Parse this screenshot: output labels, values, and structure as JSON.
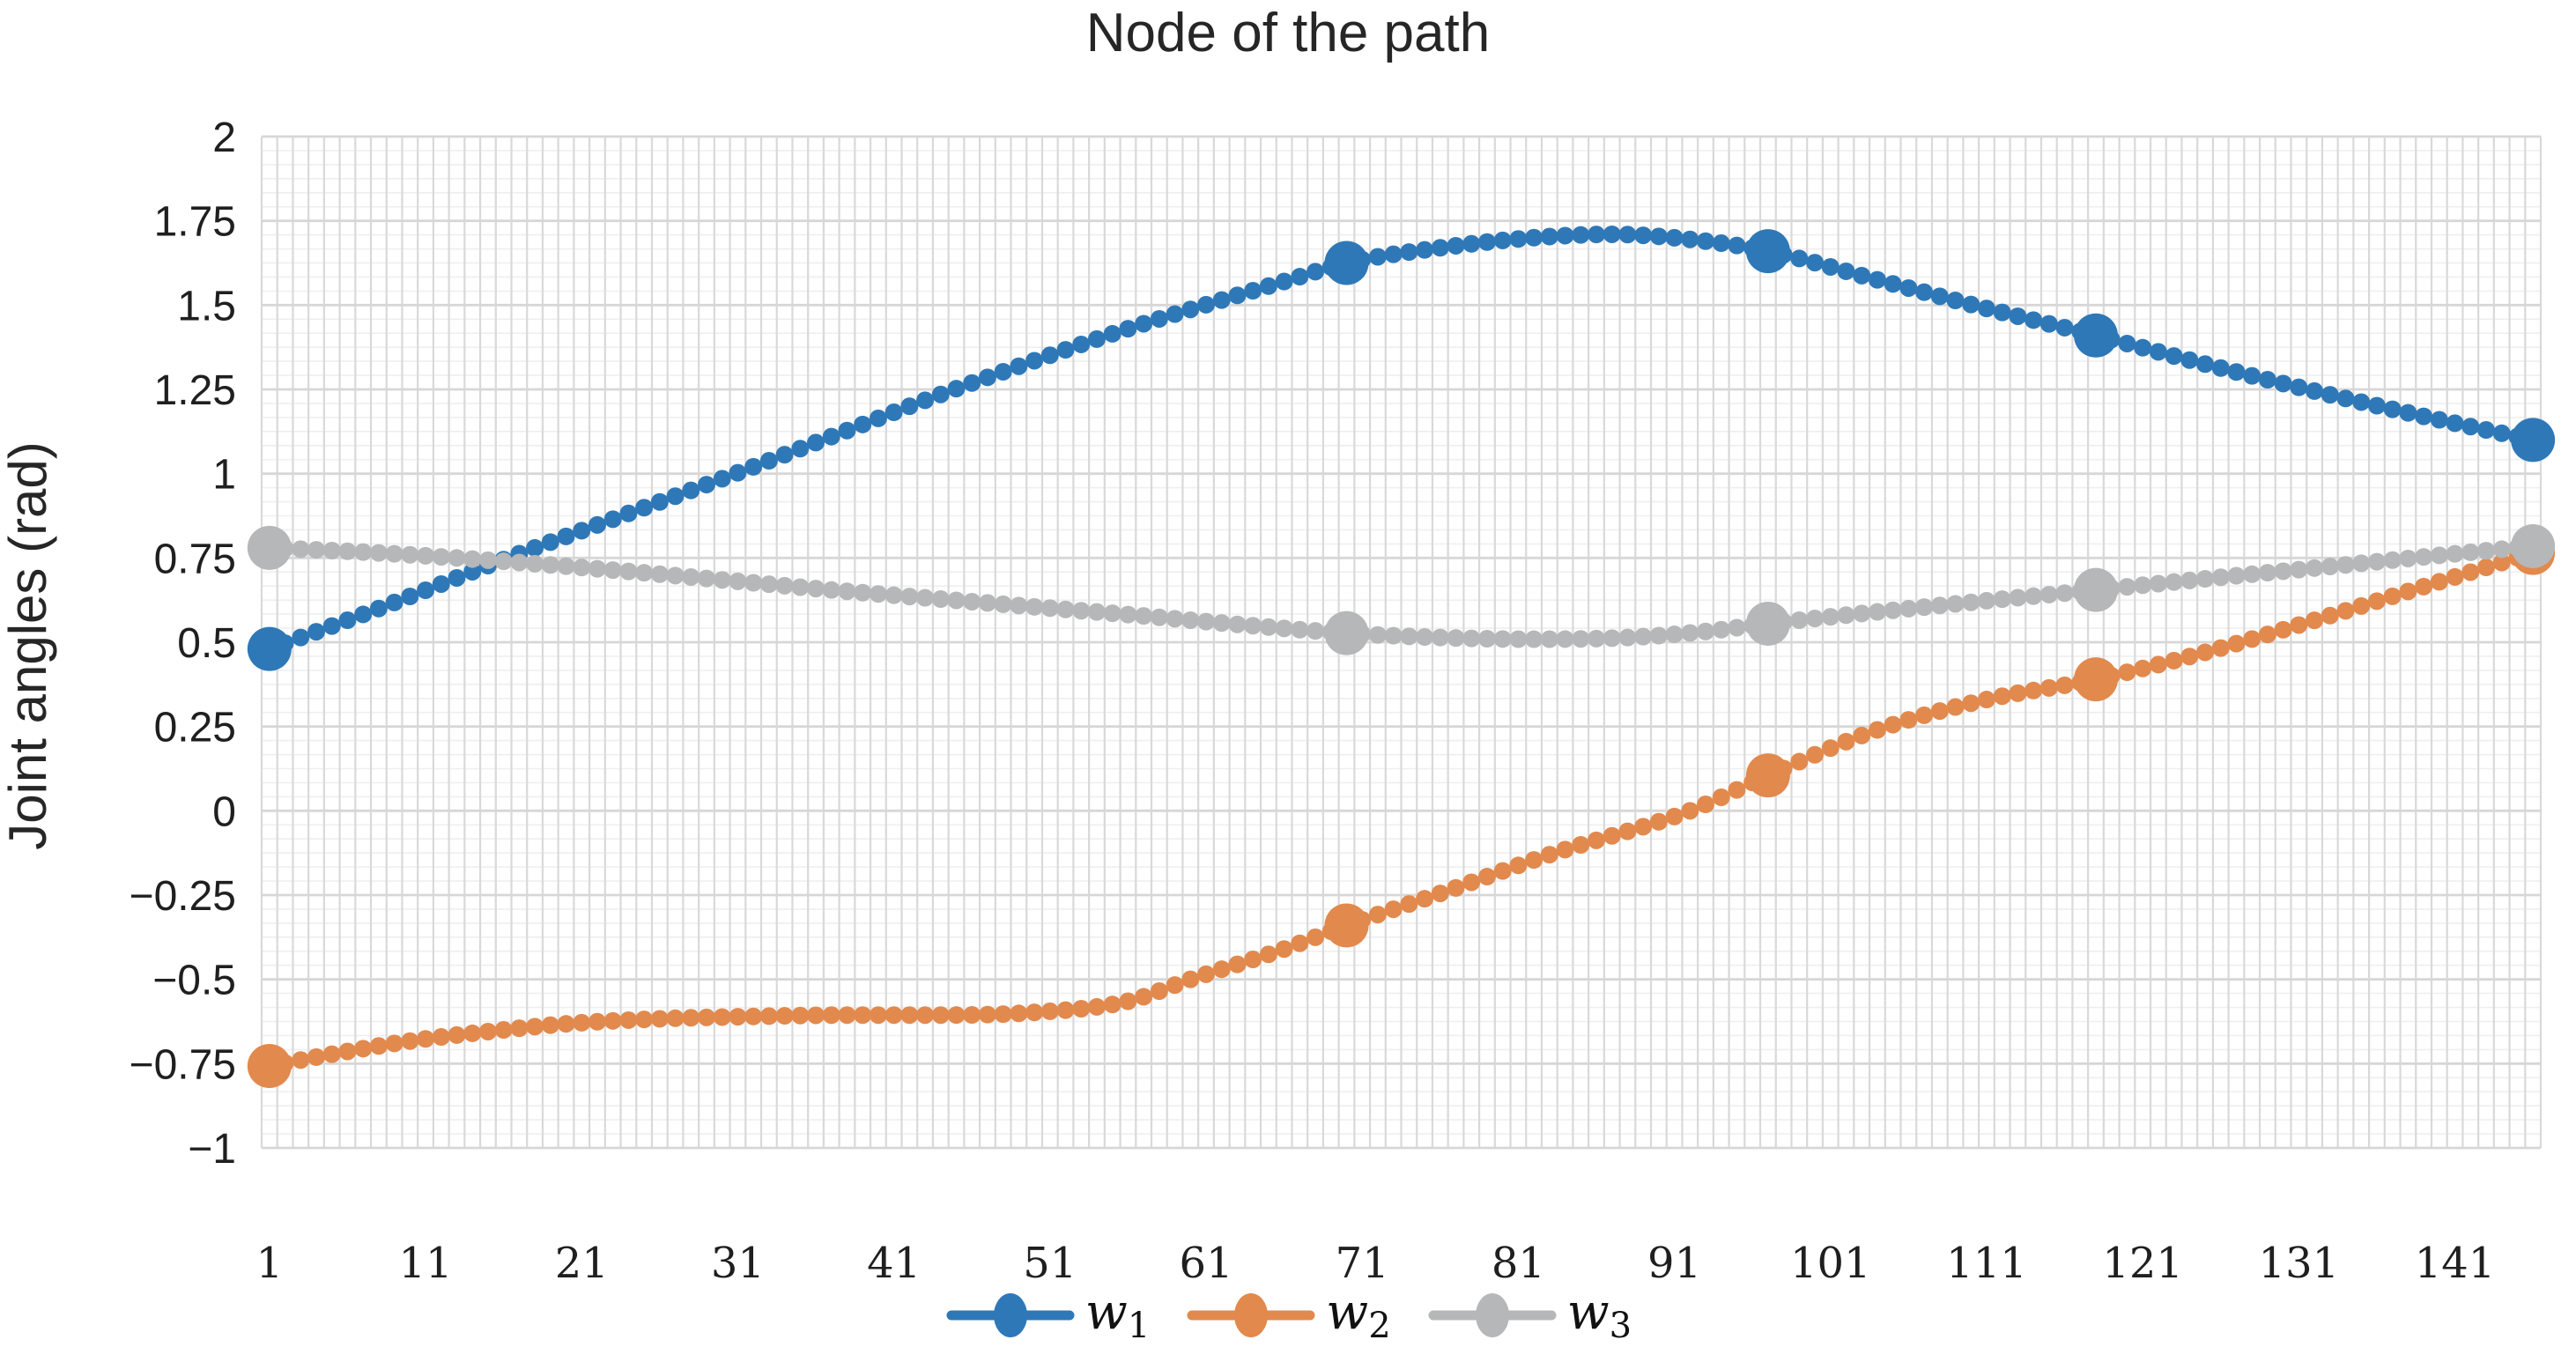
{
  "chart": {
    "title": "Node of the path",
    "ylabel": "Joint angles (rad)"
  },
  "legend": {
    "position": "bottom-center",
    "items": [
      {
        "base": "w",
        "sub": "1",
        "color": "#2E78B8"
      },
      {
        "base": "w",
        "sub": "2",
        "color": "#E2894D"
      },
      {
        "base": "w",
        "sub": "3",
        "color": "#B5B7B8"
      }
    ]
  },
  "axes": {
    "y_tick_labels": [
      "2",
      "1.75",
      "1.5",
      "1.25",
      "1",
      "0.75",
      "0.5",
      "0.25",
      "0",
      "−0.25",
      "−0.5",
      "−0.75",
      "−1"
    ],
    "y_tick_values": [
      2,
      1.75,
      1.5,
      1.25,
      1,
      0.75,
      0.5,
      0.25,
      0,
      -0.25,
      -0.5,
      -0.75,
      -1
    ],
    "x_tick_labels": [
      "1",
      "11",
      "21",
      "31",
      "41",
      "51",
      "61",
      "71",
      "81",
      "91",
      "101",
      "111",
      "121",
      "131",
      "141"
    ],
    "x_tick_nodes": [
      1,
      11,
      21,
      31,
      41,
      51,
      61,
      71,
      81,
      91,
      101,
      111,
      121,
      131,
      141
    ]
  },
  "colors": {
    "background": "#FFFFFF",
    "text": "#262626",
    "grid_vertical": "#D9D9D9",
    "grid_major_h": "#D7D7D7",
    "grid_minor_h": "#EFEFEF"
  },
  "chart_data": {
    "type": "line",
    "title": "Node of the path",
    "xlabel": "",
    "ylabel": "Joint angles (rad)",
    "x_range": [
      1,
      146
    ],
    "ylim": [
      -1,
      2
    ],
    "y_major_step": 0.25,
    "y_minor_divisions_per_major": 6,
    "x_minor_step": 1,
    "grid": "fine mesh: vertical line per node, major+minor horizontal lines",
    "legend_position": "bottom-center",
    "marker_style": "dot at every node; enlarged dots at emphasized nodes",
    "series": [
      {
        "name": "w1",
        "color": "#2E78B8",
        "emphasized_nodes": [
          1,
          70,
          97,
          118,
          146
        ],
        "points": [
          [
            1,
            0.48
          ],
          [
            8,
            0.6
          ],
          [
            16,
            0.745
          ],
          [
            23,
            0.865
          ],
          [
            30,
            0.985
          ],
          [
            37,
            1.11
          ],
          [
            44,
            1.235
          ],
          [
            50,
            1.335
          ],
          [
            56,
            1.43
          ],
          [
            62,
            1.515
          ],
          [
            66,
            1.57
          ],
          [
            70,
            1.625
          ],
          [
            76,
            1.67
          ],
          [
            82,
            1.7
          ],
          [
            87,
            1.71
          ],
          [
            92,
            1.695
          ],
          [
            97,
            1.66
          ],
          [
            104,
            1.575
          ],
          [
            111,
            1.49
          ],
          [
            118,
            1.41
          ],
          [
            125,
            1.325
          ],
          [
            132,
            1.245
          ],
          [
            139,
            1.17
          ],
          [
            146,
            1.1
          ]
        ]
      },
      {
        "name": "w2",
        "color": "#E2894D",
        "emphasized_nodes": [
          1,
          70,
          97,
          118,
          146
        ],
        "points": [
          [
            1,
            -0.757
          ],
          [
            5,
            -0.722
          ],
          [
            10,
            -0.683
          ],
          [
            15,
            -0.655
          ],
          [
            20,
            -0.632
          ],
          [
            26,
            -0.617
          ],
          [
            32,
            -0.61
          ],
          [
            38,
            -0.606
          ],
          [
            44,
            -0.606
          ],
          [
            50,
            -0.598
          ],
          [
            56,
            -0.565
          ],
          [
            60,
            -0.5
          ],
          [
            66,
            -0.41
          ],
          [
            70,
            -0.34
          ],
          [
            76,
            -0.245
          ],
          [
            83,
            -0.13
          ],
          [
            92,
            0.0
          ],
          [
            97,
            0.105
          ],
          [
            104,
            0.24
          ],
          [
            111,
            0.33
          ],
          [
            118,
            0.39
          ],
          [
            125,
            0.47
          ],
          [
            132,
            0.565
          ],
          [
            139,
            0.665
          ],
          [
            146,
            0.765
          ]
        ]
      },
      {
        "name": "w3",
        "color": "#B5B7B8",
        "emphasized_nodes": [
          1,
          70,
          97,
          118,
          146
        ],
        "points": [
          [
            1,
            0.78
          ],
          [
            8,
            0.765
          ],
          [
            16,
            0.74
          ],
          [
            23,
            0.714
          ],
          [
            30,
            0.685
          ],
          [
            37,
            0.655
          ],
          [
            44,
            0.628
          ],
          [
            50,
            0.605
          ],
          [
            57,
            0.578
          ],
          [
            63,
            0.553
          ],
          [
            70,
            0.527
          ],
          [
            76,
            0.514
          ],
          [
            82,
            0.509
          ],
          [
            88,
            0.514
          ],
          [
            93,
            0.532
          ],
          [
            97,
            0.555
          ],
          [
            104,
            0.59
          ],
          [
            111,
            0.623
          ],
          [
            118,
            0.655
          ],
          [
            125,
            0.688
          ],
          [
            132,
            0.72
          ],
          [
            139,
            0.753
          ],
          [
            146,
            0.785
          ]
        ]
      }
    ]
  }
}
